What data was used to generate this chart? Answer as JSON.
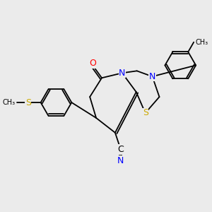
{
  "background_color": "#ebebeb",
  "bond_color": "#000000",
  "atom_colors": {
    "N": "#0000ff",
    "S": "#ccaa00",
    "O": "#ff0000",
    "C": "#000000"
  },
  "font_size_atom": 9,
  "font_size_label": 8
}
